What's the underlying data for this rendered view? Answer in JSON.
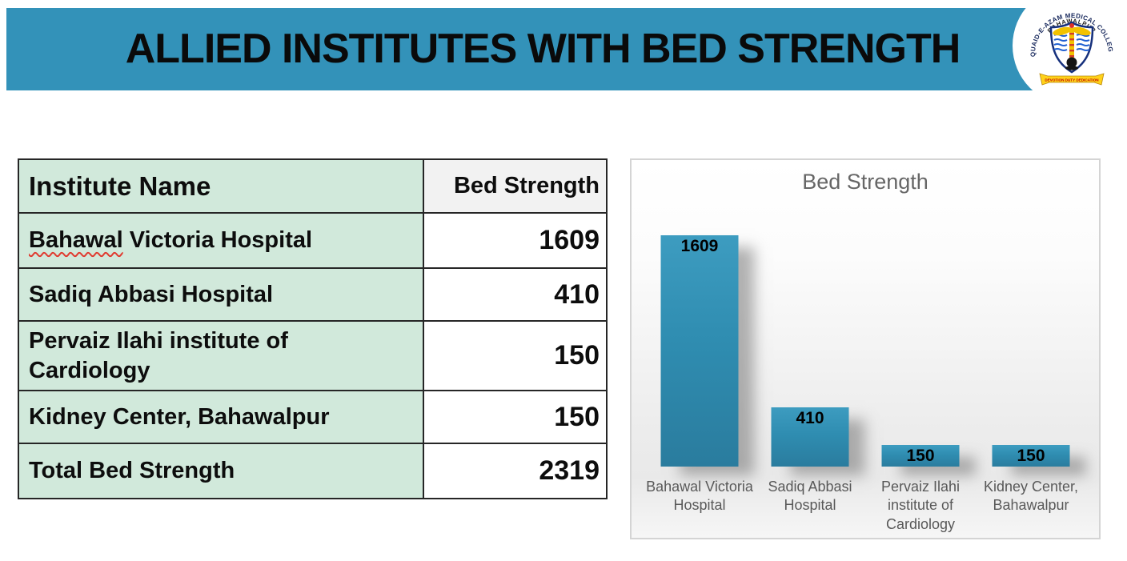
{
  "slide": {
    "title": "ALLIED INSTITUTES WITH BED STRENGTH",
    "banner_color": "#3392b9"
  },
  "logo": {
    "college_name_arc": "QUAID-E-AZAM MEDICAL COLLEGE",
    "city": "BAHAWALPUR",
    "motto_text": "DEVOTION DUTY DEDICATION"
  },
  "table": {
    "headers": [
      "Institute Name",
      "Bed Strength"
    ],
    "rows": [
      {
        "name_spellcheck": "Bahawal",
        "name_rest": " Victoria Hospital",
        "beds": "1609"
      },
      {
        "name": "Sadiq Abbasi Hospital",
        "beds": "410"
      },
      {
        "name": "Pervaiz Ilahi institute of Cardiology",
        "beds": "150"
      },
      {
        "name": "Kidney Center, Bahawalpur",
        "beds": "150"
      }
    ],
    "total_row": {
      "name": "Total Bed Strength",
      "beds": "2319"
    },
    "colors": {
      "header_bg": "#f2f2f2",
      "name_cell_bg": "#d1e9db",
      "value_cell_bg": "#ffffff"
    }
  },
  "chart_data": {
    "type": "bar",
    "title": "Bed Strength",
    "categories": [
      "Bahawal Victoria Hospital",
      "Sadiq Abbasi Hospital",
      "Pervaiz Ilahi institute of Cardiology",
      "Kidney Center, Bahawalpur"
    ],
    "values": [
      1609,
      410,
      150,
      150
    ],
    "data_labels": [
      1609,
      410,
      150,
      150
    ],
    "data_label_position": "inside-top",
    "bar_color": "#3190b5",
    "category_label_color": "#595959",
    "title_color": "#666666",
    "xlabel": "",
    "ylabel": "",
    "ylim": [
      0,
      2160
    ],
    "grid": false,
    "legend": false,
    "axes_visible": false
  }
}
